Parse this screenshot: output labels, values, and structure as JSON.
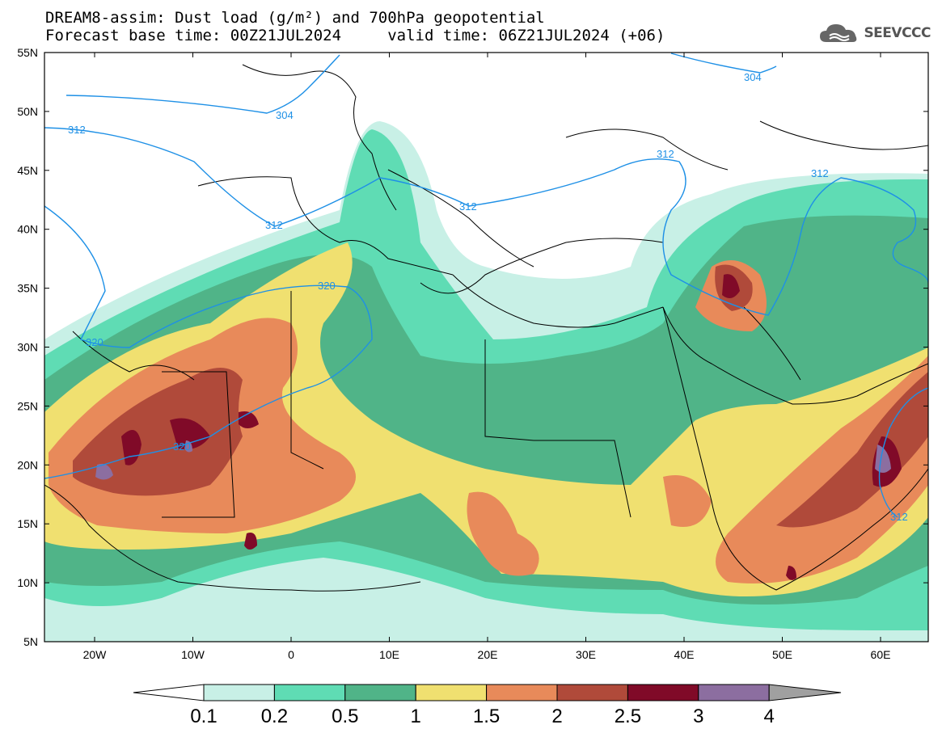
{
  "header": {
    "title_line1": "DREAM8-assim: Dust load (g/m²) and 700hPa geopotential",
    "title_line2": "Forecast base time: 00Z21JUL2024     valid time: 06Z21JUL2024 (+06)",
    "logo_text": "SEEVCCC"
  },
  "map": {
    "lat_labels": [
      "55N",
      "50N",
      "45N",
      "40N",
      "35N",
      "30N",
      "25N",
      "20N",
      "15N",
      "10N",
      "5N"
    ],
    "lon_labels": [
      "20W",
      "10W",
      "0",
      "10E",
      "20E",
      "30E",
      "40E",
      "50E",
      "60E"
    ],
    "contour_labels": [
      "304",
      "304",
      "312",
      "312",
      "312",
      "312",
      "312",
      "320",
      "320",
      "320",
      "312"
    ]
  },
  "colorbar": {
    "labels": [
      "0.1",
      "0.2",
      "0.5",
      "1",
      "1.5",
      "2",
      "2.5",
      "3",
      "4"
    ],
    "colors": [
      "#c8f0e6",
      "#5fdcb4",
      "#50b488",
      "#f0e070",
      "#e88a5a",
      "#b04a3a",
      "#800a28",
      "#8c6ea0",
      "#a0a0a0"
    ]
  },
  "colors": {
    "contour": "#1e90e6",
    "coast": "#000000"
  }
}
